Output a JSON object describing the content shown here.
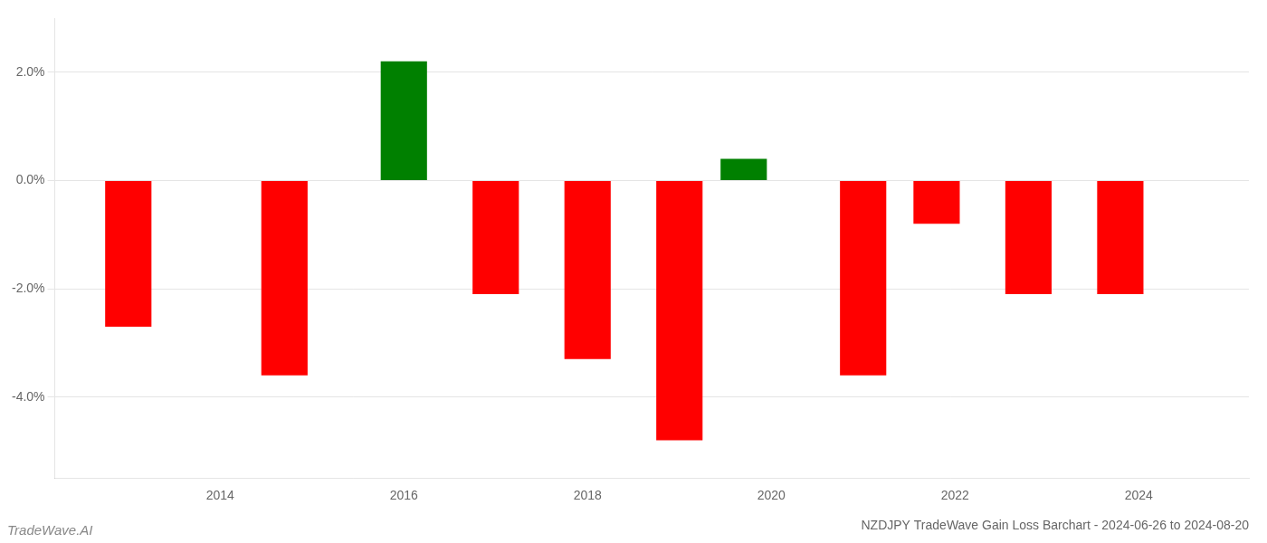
{
  "chart_data": {
    "type": "bar",
    "title": "NZDJPY TradeWave Gain Loss Barchart - 2024-06-26 to 2024-08-20",
    "annotations": [
      "TradeWave.AI"
    ],
    "x": [
      2013.0,
      2014.7,
      2016.0,
      2017.0,
      2018.0,
      2019.0,
      2019.7,
      2021.0,
      2021.8,
      2022.8,
      2023.8
    ],
    "values": [
      -2.7,
      -3.6,
      2.2,
      -2.1,
      -3.3,
      -4.8,
      0.4,
      -3.6,
      -0.8,
      -2.1,
      -2.1
    ],
    "colors": [
      "#ff0000",
      "#ff0000",
      "#008000",
      "#ff0000",
      "#ff0000",
      "#ff0000",
      "#008000",
      "#ff0000",
      "#ff0000",
      "#ff0000",
      "#ff0000"
    ],
    "xlim": [
      2012.2,
      2025.2
    ],
    "xticks": [
      2014,
      2016,
      2018,
      2020,
      2022,
      2024
    ],
    "ylim": [
      -5.5,
      3.0
    ],
    "yticks": [
      {
        "value": -4.0,
        "label": "-4.0%"
      },
      {
        "value": -2.0,
        "label": "-2.0%"
      },
      {
        "value": 0.0,
        "label": "0.0%"
      },
      {
        "value": 2.0,
        "label": "2.0%"
      }
    ],
    "grid": true
  }
}
